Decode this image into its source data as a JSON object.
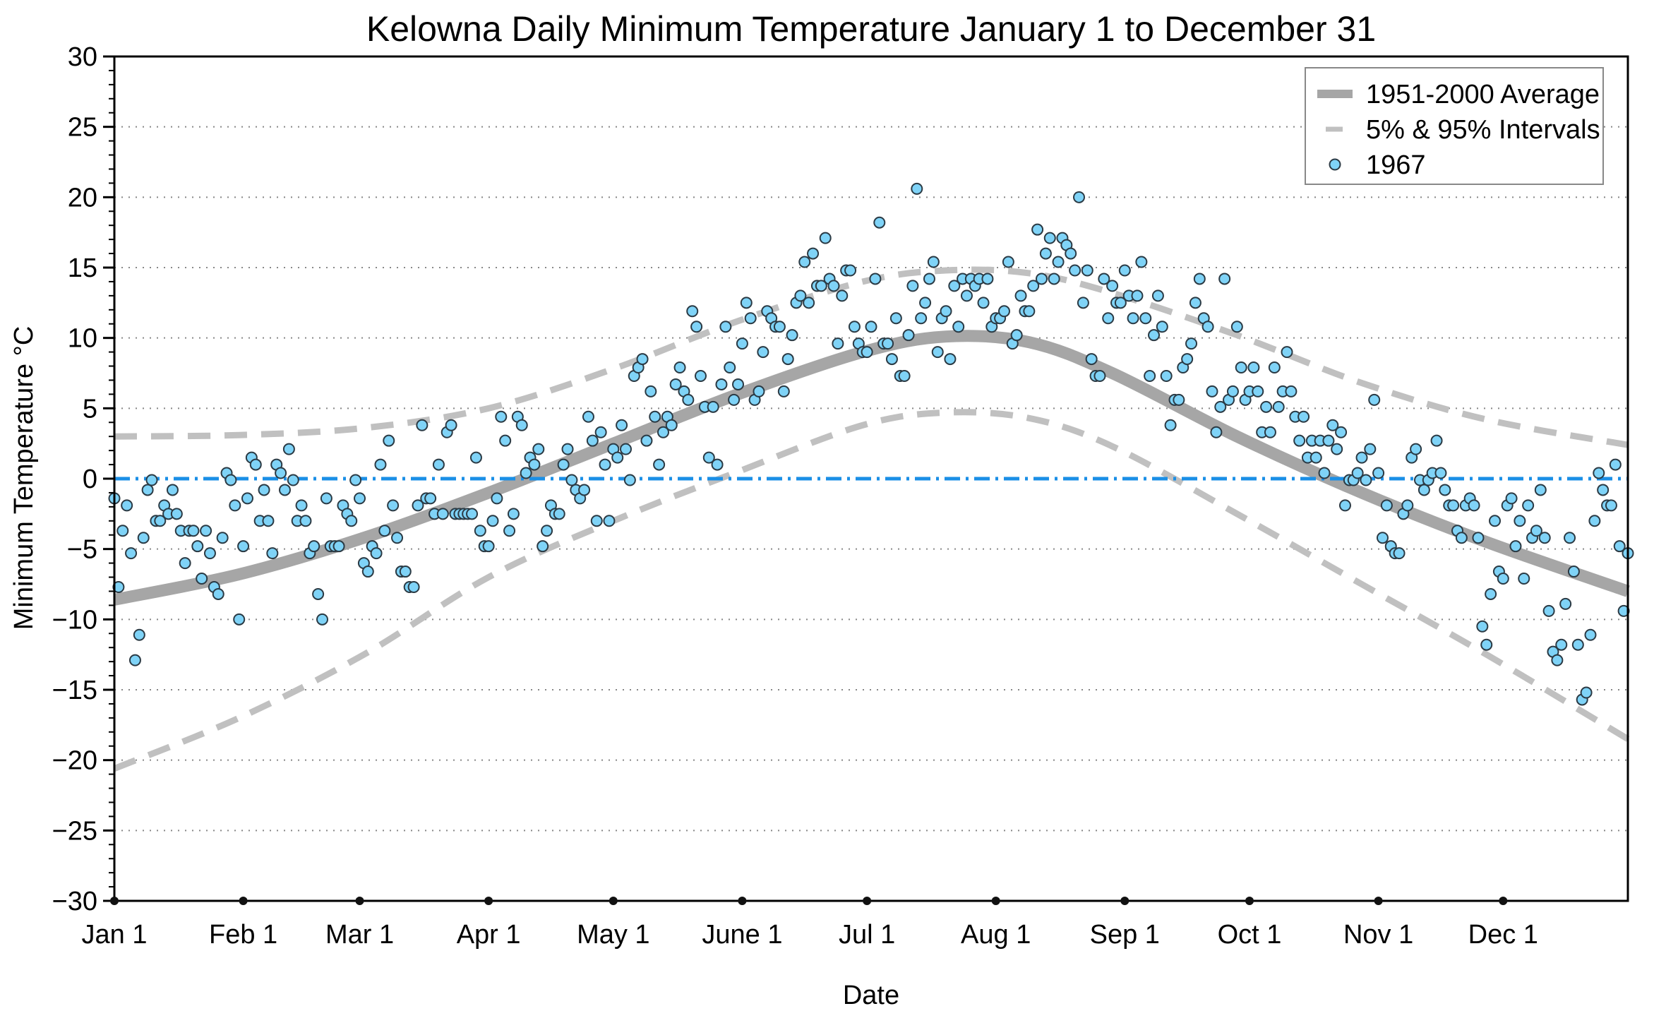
{
  "chart_data": {
    "type": "scatter",
    "title": "Kelowna Daily Minimum Temperature January 1 to December 31",
    "xlabel": "Date",
    "ylabel": "Minimum Temperature °C",
    "ylim": [
      -30,
      30
    ],
    "xlim_days": [
      0,
      364
    ],
    "y_ticks": [
      30,
      25,
      20,
      15,
      10,
      5,
      0,
      -5,
      -10,
      -15,
      -20,
      -25,
      -30
    ],
    "y_tick_labels": [
      "30",
      "25",
      "20",
      "15",
      "10",
      "5",
      "0",
      "−5",
      "−10",
      "−15",
      "−20",
      "−25",
      "−30"
    ],
    "x_ticks": [
      {
        "label": "Jan 1",
        "day": 0
      },
      {
        "label": "Feb 1",
        "day": 31
      },
      {
        "label": "Mar 1",
        "day": 59
      },
      {
        "label": "Apr 1",
        "day": 90
      },
      {
        "label": "May 1",
        "day": 120
      },
      {
        "label": "June 1",
        "day": 151
      },
      {
        "label": "Jul 1",
        "day": 181
      },
      {
        "label": "Aug 1",
        "day": 212
      },
      {
        "label": "Sep 1",
        "day": 243
      },
      {
        "label": "Oct 1",
        "day": 273
      },
      {
        "label": "Nov 1",
        "day": 304
      },
      {
        "label": "Dec 1",
        "day": 334
      }
    ],
    "grid": "horizontal dotted",
    "reference_line": {
      "y": 0,
      "style": "dash-dot",
      "color": "#1a8fe6"
    },
    "legend": {
      "placement": "top-right",
      "entries": [
        {
          "label": "1951-2000 Average",
          "style": "thick-line",
          "color": "#a6a6a6"
        },
        {
          "label": "5% & 95% Intervals",
          "style": "dashed-line",
          "color": "#c0c0c0"
        },
        {
          "label": "1967",
          "style": "marker",
          "color": "#7fd3f7"
        }
      ]
    },
    "series": [
      {
        "name": "1951-2000 Average",
        "type": "line",
        "color": "#a6a6a6",
        "x": [
          0,
          30,
          60,
          90,
          120,
          150,
          180,
          200,
          220,
          240,
          270,
          300,
          330,
          364
        ],
        "y": [
          -8.6,
          -6.8,
          -4.2,
          -1.0,
          2.5,
          6.0,
          9.0,
          10.1,
          9.7,
          7.5,
          3.0,
          -1.0,
          -4.5,
          -8.0
        ]
      },
      {
        "name": "95% Interval",
        "type": "line",
        "dashed": true,
        "color": "#c0c0c0",
        "x": [
          0,
          30,
          60,
          90,
          120,
          150,
          180,
          200,
          220,
          240,
          270,
          300,
          330,
          364
        ],
        "y": [
          3.0,
          3.1,
          3.6,
          5.0,
          7.8,
          11.2,
          14.0,
          14.8,
          14.6,
          13.2,
          10.2,
          6.8,
          4.2,
          2.4
        ]
      },
      {
        "name": "5% Interval",
        "type": "line",
        "dashed": true,
        "color": "#c0c0c0",
        "x": [
          0,
          30,
          60,
          90,
          120,
          150,
          180,
          200,
          220,
          240,
          270,
          300,
          330,
          364
        ],
        "y": [
          -20.6,
          -17.0,
          -12.5,
          -7.0,
          -3.0,
          0.5,
          3.8,
          4.7,
          4.3,
          2.3,
          -2.5,
          -7.5,
          -12.5,
          -18.5
        ]
      },
      {
        "name": "1967",
        "type": "scatter",
        "color": "#7fd3f7",
        "y": [
          -1.4,
          -7.7,
          -3.7,
          -1.9,
          -5.3,
          -12.9,
          -11.1,
          -4.2,
          -0.8,
          -0.1,
          -3.0,
          -3.0,
          -1.9,
          -2.5,
          -0.8,
          -2.5,
          -3.7,
          -6.0,
          -3.7,
          -3.7,
          -4.8,
          -7.1,
          -3.7,
          -5.3,
          -7.7,
          -8.2,
          -4.2,
          0.4,
          -0.1,
          -1.9,
          -10.0,
          -4.8,
          -1.4,
          1.5,
          1.0,
          -3.0,
          -0.8,
          -3.0,
          -5.3,
          1.0,
          0.4,
          -0.8,
          2.1,
          -0.1,
          -3.0,
          -1.9,
          -3.0,
          -5.3,
          -4.8,
          -8.2,
          -10.0,
          -1.4,
          -4.8,
          -4.8,
          -4.8,
          -1.9,
          -2.5,
          -3.0,
          -0.1,
          -1.4,
          -6.0,
          -6.6,
          -4.8,
          -5.3,
          1.0,
          -3.7,
          2.7,
          -1.9,
          -4.2,
          -6.6,
          -6.6,
          -7.7,
          -7.7,
          -1.9,
          3.8,
          -1.4,
          -1.4,
          -2.5,
          1.0,
          -2.5,
          3.3,
          3.8,
          -2.5,
          -2.5,
          -2.5,
          -2.5,
          -2.5,
          1.5,
          -3.7,
          -4.8,
          -4.8,
          -3.0,
          -1.4,
          4.4,
          2.7,
          -3.7,
          -2.5,
          4.4,
          3.8,
          0.4,
          1.5,
          1.0,
          2.1,
          -4.8,
          -3.7,
          -1.9,
          -2.5,
          -2.5,
          1.0,
          2.1,
          -0.1,
          -0.8,
          -1.4,
          -0.8,
          4.4,
          2.7,
          -3.0,
          3.3,
          1.0,
          -3.0,
          2.1,
          1.5,
          3.8,
          2.1,
          -0.1,
          7.3,
          7.9,
          8.5,
          2.7,
          6.2,
          4.4,
          1.0,
          3.3,
          4.4,
          3.8,
          6.7,
          7.9,
          6.2,
          5.6,
          11.9,
          10.8,
          7.3,
          5.1,
          1.5,
          5.1,
          1.0,
          6.7,
          10.8,
          7.9,
          5.6,
          6.7,
          9.6,
          12.5,
          11.4,
          5.6,
          6.2,
          9.0,
          11.9,
          11.4,
          10.8,
          10.8,
          6.2,
          8.5,
          10.2,
          12.5,
          13.0,
          15.4,
          12.5,
          16.0,
          13.7,
          13.7,
          17.1,
          14.2,
          13.7,
          9.6,
          13.0,
          14.8,
          14.8,
          10.8,
          9.6,
          9.0,
          9.0,
          10.8,
          14.2,
          18.2,
          9.6,
          9.6,
          8.5,
          11.4,
          7.3,
          7.3,
          10.2,
          13.7,
          20.6,
          11.4,
          12.5,
          14.2,
          15.4,
          9.0,
          11.4,
          11.9,
          8.5,
          13.7,
          10.8,
          14.2,
          13.0,
          14.2,
          13.7,
          14.2,
          12.5,
          14.2,
          10.8,
          11.4,
          11.4,
          11.9,
          15.4,
          9.6,
          10.2,
          13.0,
          11.9,
          11.9,
          13.7,
          17.7,
          14.2,
          16.0,
          17.1,
          14.2,
          15.4,
          17.1,
          16.6,
          16.0,
          14.8,
          20.0,
          12.5,
          14.8,
          8.5,
          7.3,
          7.3,
          14.2,
          11.4,
          13.7,
          12.5,
          12.5,
          14.8,
          13.0,
          11.4,
          13.0,
          15.4,
          11.4,
          7.3,
          10.2,
          13.0,
          10.8,
          7.3,
          3.8,
          5.6,
          5.6,
          7.9,
          8.5,
          9.6,
          12.5,
          14.2,
          11.4,
          10.8,
          6.2,
          3.3,
          5.1,
          14.2,
          5.6,
          6.2,
          10.8,
          7.9,
          5.6,
          6.2,
          7.9,
          6.2,
          3.3,
          5.1,
          3.3,
          7.9,
          5.1,
          6.2,
          9.0,
          6.2,
          4.4,
          2.7,
          4.4,
          1.5,
          2.7,
          1.5,
          2.7,
          0.4,
          2.7,
          3.8,
          2.1,
          3.3,
          -1.9,
          -0.1,
          -0.1,
          0.4,
          1.5,
          -0.1,
          2.1,
          5.6,
          0.4,
          -4.2,
          -1.9,
          -4.8,
          -5.3,
          -5.3,
          -2.5,
          -1.9,
          1.5,
          2.1,
          -0.1,
          -0.8,
          -0.1,
          0.4,
          2.7,
          0.4,
          -0.8,
          -1.9,
          -1.9,
          -3.7,
          -4.2,
          -1.9,
          -1.4,
          -1.9,
          -4.2,
          -10.5,
          -11.8,
          -8.2,
          -3.0,
          -6.6,
          -7.1,
          -1.9,
          -1.4,
          -4.8,
          -3.0,
          -7.1,
          -1.9,
          -4.2,
          -3.7,
          -0.8,
          -4.2,
          -9.4,
          -12.3,
          -12.9,
          -11.8,
          -8.9,
          -4.2,
          -6.6,
          -11.8,
          -15.7,
          -15.2,
          -11.1,
          -3.0,
          0.4,
          -0.8,
          -1.9,
          -1.9,
          1.0,
          -4.8,
          -9.4,
          -5.3
        ]
      }
    ]
  }
}
